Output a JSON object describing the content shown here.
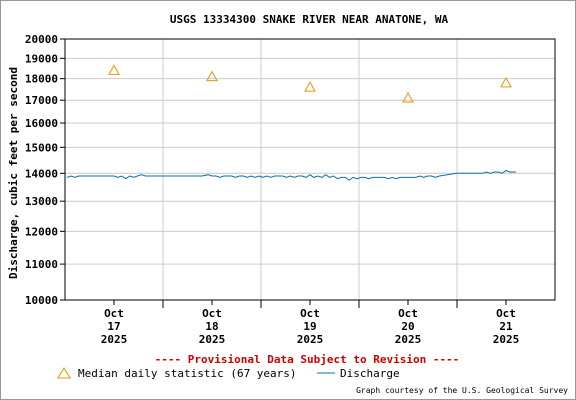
{
  "chart_data": {
    "type": "line",
    "title": "USGS 13334300 SNAKE RIVER NEAR ANATONE, WA",
    "ylabel": "Discharge, cubic feet per second",
    "y_scale": "log",
    "ylim": [
      10000,
      20000
    ],
    "y_ticks": [
      10000,
      11000,
      12000,
      13000,
      14000,
      15000,
      16000,
      17000,
      18000,
      19000,
      20000
    ],
    "y_tick_labels": [
      "10000",
      "11000",
      "12000",
      "13000",
      "14000",
      "15000",
      "16000",
      "17000",
      "18000",
      "19000",
      "20000"
    ],
    "x_ticks": [
      {
        "day": 17,
        "label": [
          "Oct",
          "17",
          "2025"
        ]
      },
      {
        "day": 18,
        "label": [
          "Oct",
          "18",
          "2025"
        ]
      },
      {
        "day": 19,
        "label": [
          "Oct",
          "19",
          "2025"
        ]
      },
      {
        "day": 20,
        "label": [
          "Oct",
          "20",
          "2025"
        ]
      },
      {
        "day": 21,
        "label": [
          "Oct",
          "21",
          "2025"
        ]
      }
    ],
    "xlim": [
      16.5,
      21.5
    ],
    "grid": true,
    "series": [
      {
        "name": "Median daily statistic (67 years)",
        "kind": "marker",
        "color": "#e69800",
        "x": [
          17,
          18,
          19,
          20,
          21
        ],
        "y": [
          18400,
          18100,
          17600,
          17100,
          17800
        ]
      },
      {
        "name": "Discharge",
        "kind": "line",
        "color": "#0b6fa4",
        "x": [
          16.52,
          16.56,
          16.6,
          16.64,
          16.68,
          16.72,
          16.76,
          16.8,
          16.84,
          16.88,
          16.92,
          16.96,
          17.0,
          17.04,
          17.08,
          17.12,
          17.16,
          17.2,
          17.24,
          17.28,
          17.32,
          17.36,
          17.4,
          17.44,
          17.48,
          17.52,
          17.6,
          17.7,
          17.8,
          17.9,
          17.96,
          18.0,
          18.04,
          18.08,
          18.12,
          18.16,
          18.2,
          18.24,
          18.28,
          18.32,
          18.36,
          18.4,
          18.44,
          18.48,
          18.52,
          18.56,
          18.6,
          18.64,
          18.68,
          18.72,
          18.76,
          18.8,
          18.84,
          18.88,
          18.92,
          18.96,
          19.0,
          19.04,
          19.08,
          19.12,
          19.16,
          19.2,
          19.24,
          19.28,
          19.32,
          19.36,
          19.4,
          19.44,
          19.48,
          19.52,
          19.56,
          19.6,
          19.64,
          19.68,
          19.72,
          19.76,
          19.8,
          19.84,
          19.88,
          19.92,
          19.96,
          20.0,
          20.04,
          20.08,
          20.12,
          20.16,
          20.2,
          20.24,
          20.28,
          20.32,
          20.4,
          20.5,
          20.6,
          20.64,
          20.68,
          20.72,
          20.76,
          20.8,
          20.84,
          20.88,
          20.92,
          20.96,
          21.0,
          21.04,
          21.08,
          21.1
        ],
        "y": [
          13850,
          13900,
          13850,
          13900,
          13900,
          13900,
          13900,
          13900,
          13900,
          13900,
          13900,
          13900,
          13900,
          13850,
          13900,
          13800,
          13900,
          13850,
          13900,
          13950,
          13900,
          13900,
          13900,
          13900,
          13900,
          13900,
          13900,
          13900,
          13900,
          13900,
          13950,
          13900,
          13900,
          13850,
          13900,
          13900,
          13900,
          13850,
          13900,
          13900,
          13850,
          13900,
          13850,
          13900,
          13850,
          13900,
          13850,
          13900,
          13900,
          13900,
          13850,
          13900,
          13850,
          13900,
          13900,
          13850,
          13950,
          13850,
          13900,
          13850,
          13950,
          13850,
          13900,
          13800,
          13850,
          13850,
          13750,
          13850,
          13800,
          13850,
          13850,
          13800,
          13850,
          13850,
          13850,
          13850,
          13800,
          13850,
          13800,
          13850,
          13850,
          13850,
          13850,
          13850,
          13900,
          13850,
          13900,
          13900,
          13850,
          13900,
          13950,
          14000,
          14000,
          14000,
          14000,
          14000,
          14000,
          14050,
          14000,
          14050,
          14050,
          14000,
          14100,
          14050,
          14050,
          14050
        ]
      }
    ]
  },
  "provisional_note": "---- Provisional Data Subject to Revision ----",
  "legend": {
    "median_label": "Median daily statistic (67 years)",
    "discharge_label": "Discharge"
  },
  "credit": "Graph courtesy of the U.S. Geological Survey",
  "colors": {
    "axis": "#000000",
    "grid": "#cccccc",
    "provisional": "#cc0000"
  }
}
